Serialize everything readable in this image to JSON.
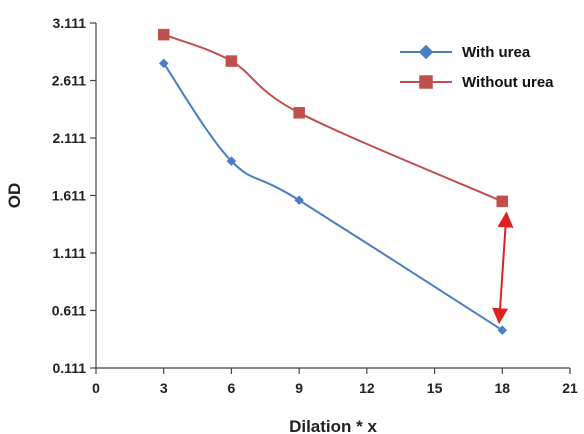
{
  "chart_data": {
    "type": "line",
    "title": "",
    "xlabel": "Dilation * x",
    "ylabel": "OD",
    "xlim": [
      0,
      21
    ],
    "ylim": [
      0.111,
      3.111
    ],
    "x_ticks": [
      "0",
      "3",
      "6",
      "9",
      "12",
      "15",
      "18",
      "21"
    ],
    "y_ticks": [
      "0.111",
      "0.611",
      "1.111",
      "1.611",
      "2.111",
      "2.611",
      "3.111"
    ],
    "grid": false,
    "legend_position": "top-right",
    "series": [
      {
        "name": "With urea",
        "color": "#4a7ebf",
        "marker": "diamond",
        "smooth": true,
        "x": [
          3,
          6,
          9,
          18
        ],
        "y": [
          2.76,
          1.91,
          1.57,
          0.44
        ]
      },
      {
        "name": "Without urea",
        "color": "#c0504d",
        "marker": "square",
        "smooth": true,
        "x": [
          3,
          6,
          9,
          18
        ],
        "y": [
          3.01,
          2.78,
          2.33,
          1.56
        ]
      }
    ],
    "annotations": [
      {
        "type": "double-arrow",
        "color": "#e02020",
        "x": 18,
        "y_from": 0.44,
        "y_to": 1.56
      }
    ]
  }
}
